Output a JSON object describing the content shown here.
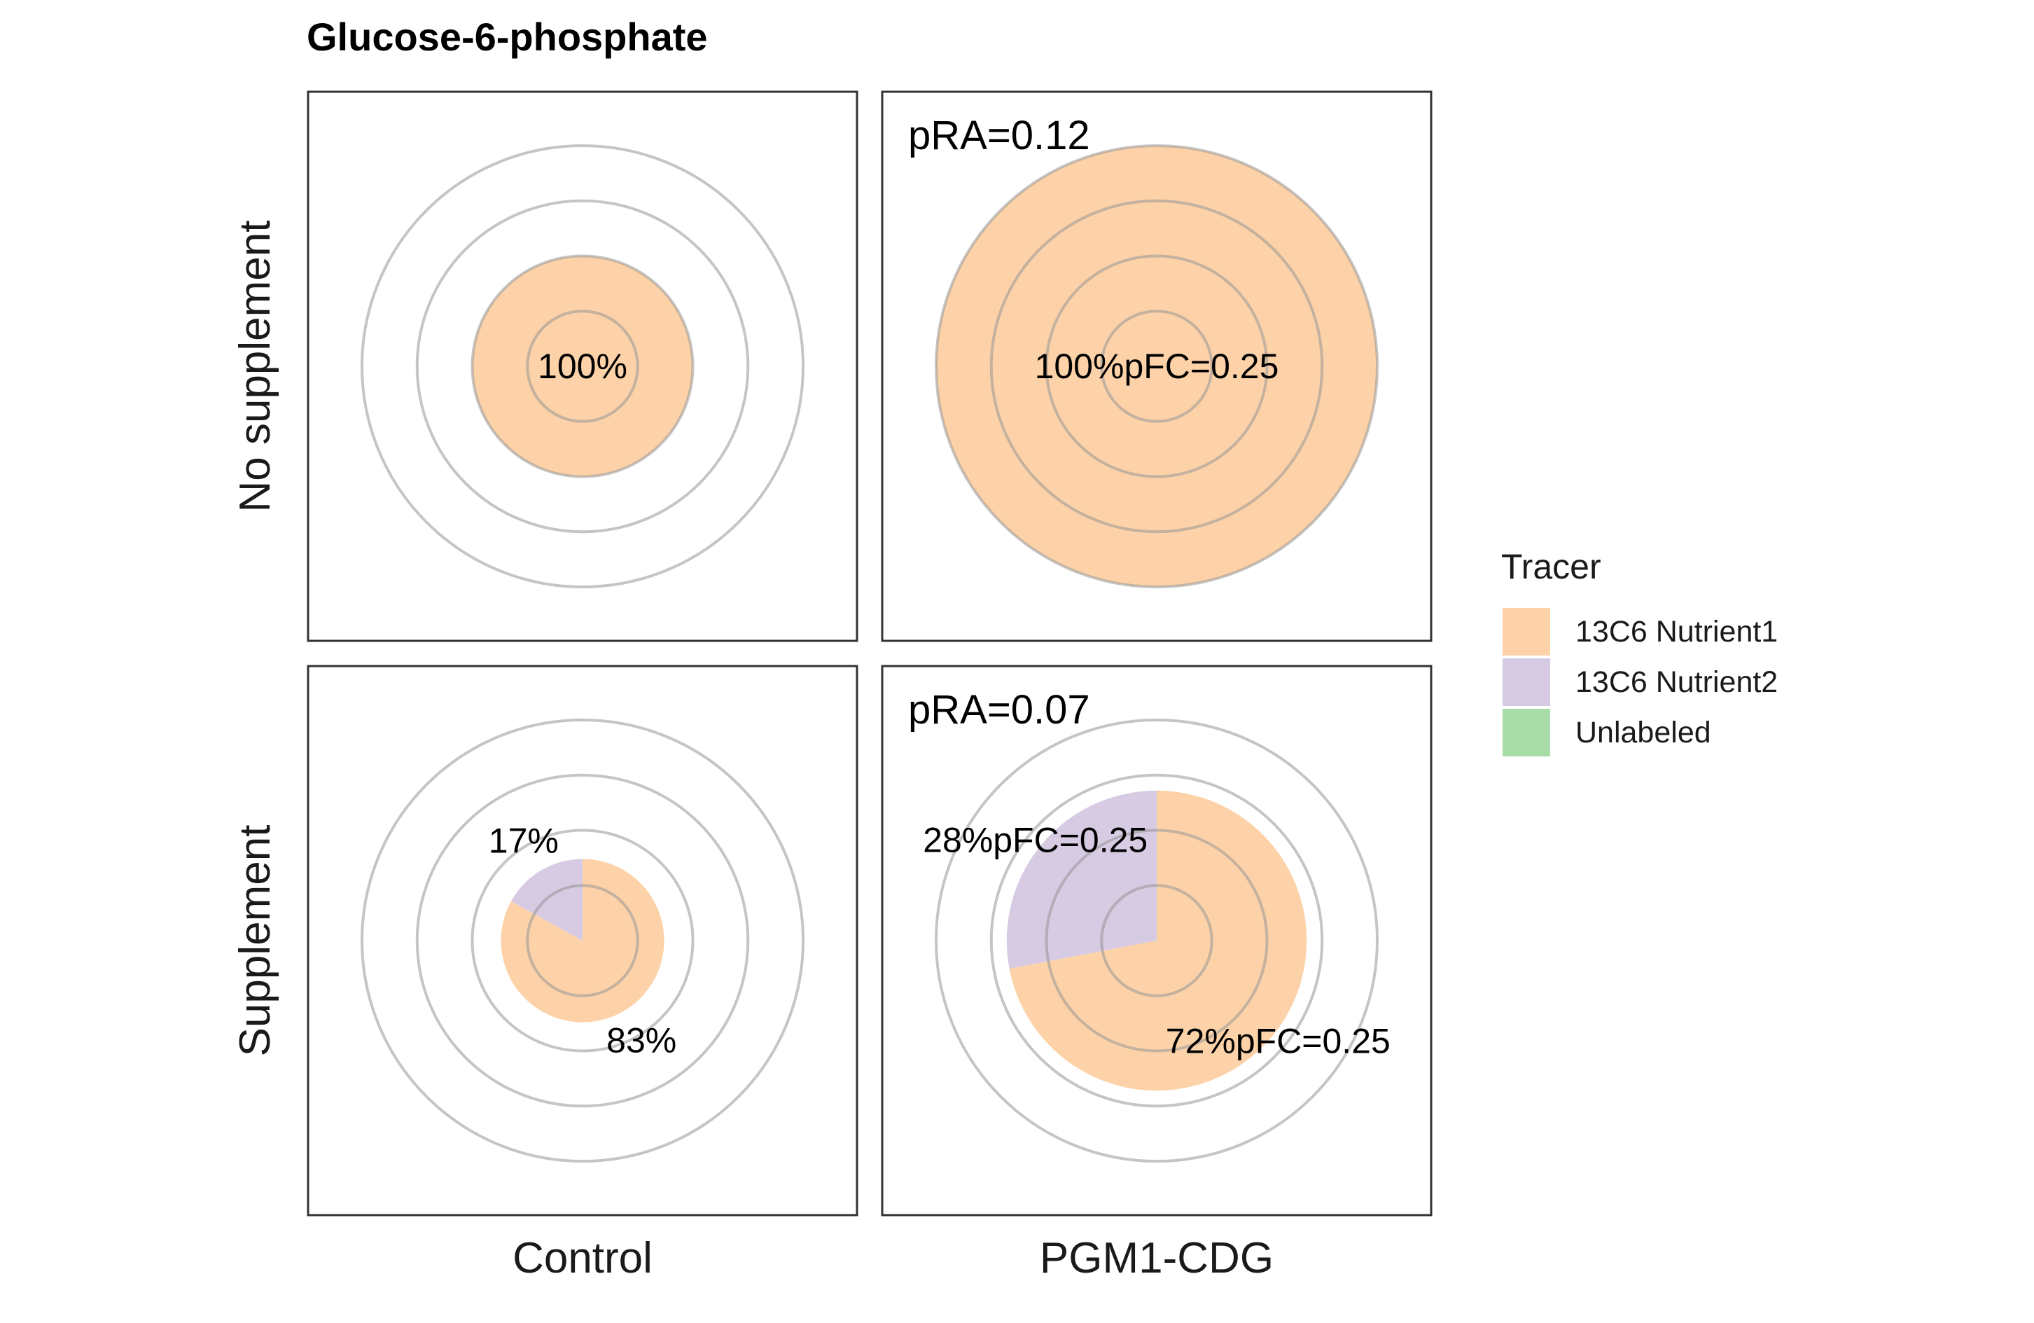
{
  "chart_data": {
    "type": "pie",
    "title": "Glucose-6-phosphate",
    "legend": {
      "title": "Tracer",
      "position": "right",
      "items": [
        {
          "label": "13C6 Nutrient1",
          "color": "#FDD2A8"
        },
        {
          "label": "13C6 Nutrient2",
          "color": "#D6CBE2"
        },
        {
          "label": "Unlabeled",
          "color": "#A8DCA8"
        }
      ]
    },
    "columns": [
      "Control",
      "PGM1-CDG"
    ],
    "rows": [
      "No supplement",
      "Supplement"
    ],
    "ring_levels": [
      0.25,
      0.5,
      0.75,
      1.0
    ],
    "panels": [
      {
        "row": "No supplement",
        "column": "Control",
        "radius": 0.5,
        "corner_label": "",
        "slices": [
          {
            "tracer": "13C6 Nutrient1",
            "percent": 100
          }
        ],
        "labels": [
          {
            "text": "100%",
            "tracer": "13C6 Nutrient1"
          }
        ]
      },
      {
        "row": "No supplement",
        "column": "PGM1-CDG",
        "radius": 1.0,
        "corner_label": "pRA=0.12",
        "slices": [
          {
            "tracer": "13C6 Nutrient1",
            "percent": 100
          }
        ],
        "labels": [
          {
            "text": "100%pFC=0.25",
            "tracer": "13C6 Nutrient1"
          }
        ]
      },
      {
        "row": "Supplement",
        "column": "Control",
        "radius": 0.37,
        "corner_label": "",
        "slices": [
          {
            "tracer": "13C6 Nutrient1",
            "percent": 83
          },
          {
            "tracer": "13C6 Nutrient2",
            "percent": 17
          }
        ],
        "labels": [
          {
            "text": "17%",
            "tracer": "13C6 Nutrient2"
          },
          {
            "text": "83%",
            "tracer": "13C6 Nutrient1"
          }
        ]
      },
      {
        "row": "Supplement",
        "column": "PGM1-CDG",
        "radius": 0.68,
        "corner_label": "pRA=0.07",
        "slices": [
          {
            "tracer": "13C6 Nutrient1",
            "percent": 72
          },
          {
            "tracer": "13C6 Nutrient2",
            "percent": 28
          }
        ],
        "labels": [
          {
            "text": "28%pFC=0.25",
            "tracer": "13C6 Nutrient2"
          },
          {
            "text": "72%pFC=0.25",
            "tracer": "13C6 Nutrient1"
          }
        ]
      }
    ]
  }
}
